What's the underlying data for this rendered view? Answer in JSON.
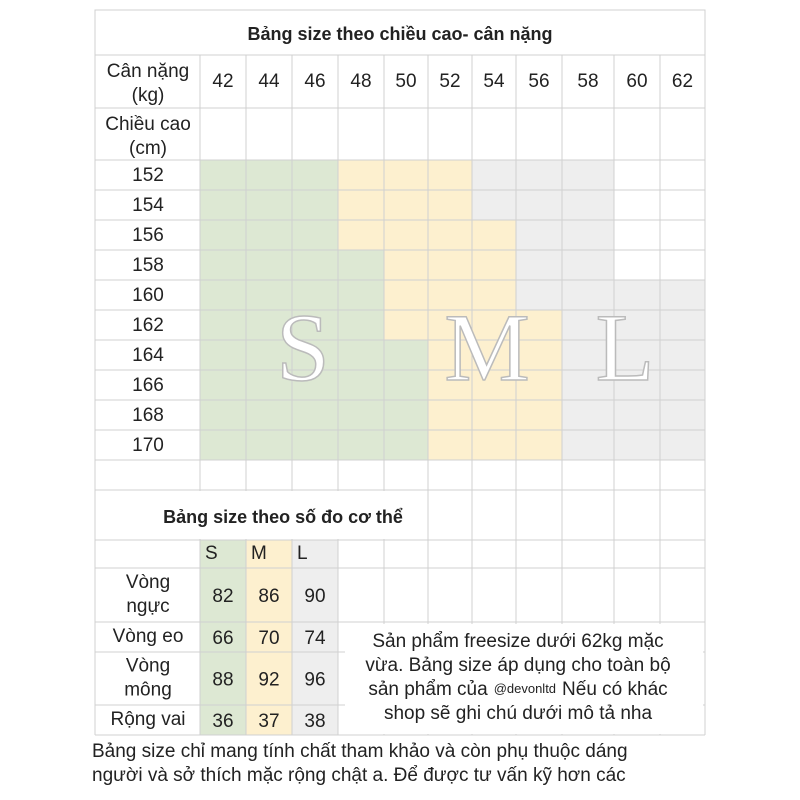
{
  "title": "Bảng size theo chiều cao- cân nặng",
  "weight_label": [
    "Cân nặng",
    "(kg)"
  ],
  "height_label": [
    "Chiều cao",
    "(cm)"
  ],
  "weights": [
    42,
    44,
    46,
    48,
    50,
    52,
    54,
    56,
    58,
    60,
    62
  ],
  "heights": [
    152,
    154,
    156,
    158,
    160,
    162,
    164,
    166,
    168,
    170
  ],
  "size_letters": [
    "S",
    "M",
    "L"
  ],
  "measure_table": {
    "title": "Bảng size theo số đo cơ thể",
    "columns": [
      "S",
      "M",
      "L"
    ],
    "rows": [
      {
        "label": [
          "Vòng",
          "ngực"
        ],
        "values": [
          82,
          86,
          90
        ]
      },
      {
        "label": [
          "Vòng eo"
        ],
        "values": [
          66,
          70,
          74
        ]
      },
      {
        "label": [
          "Vòng",
          "mông"
        ],
        "values": [
          88,
          92,
          96
        ]
      },
      {
        "label": [
          "Rộng vai"
        ],
        "values": [
          36,
          37,
          38
        ]
      }
    ]
  },
  "note": {
    "line1": "Sản phẩm freesize dưới 62kg mặc",
    "line2": "vừa. Bảng size áp dụng cho toàn bộ",
    "line3a": "sản phẩm của",
    "handle": "@devonltd",
    "line3b": "Nếu có khác",
    "line4": "shop sẽ ghi chú dưới mô tả nha"
  },
  "footer": [
    "Bảng size chỉ mang tính chất tham khảo và còn phụ thuộc dáng",
    "người và sở thích mặc rộng chật a.  Để được tư vấn kỹ hơn các"
  ]
}
